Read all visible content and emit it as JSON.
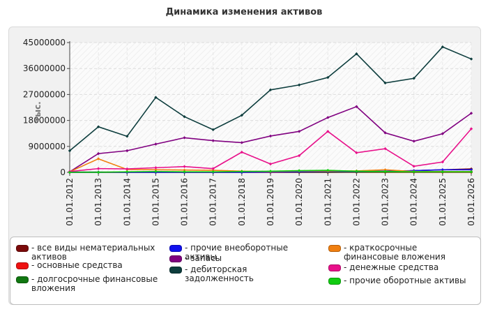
{
  "chart_data": {
    "type": "line",
    "title": "Динамика изменения активов",
    "ylabel": "тыс.",
    "ylim": [
      0,
      45000000
    ],
    "yticks": [
      "0",
      "9000000",
      "18000000",
      "27000000",
      "36000000",
      "45000000"
    ],
    "yticks_values": [
      0,
      9000000,
      18000000,
      27000000,
      36000000,
      45000000
    ],
    "grid": true,
    "legend_position": "bottom",
    "categories": [
      "01.01.2012",
      "01.01.2013",
      "01.01.2014",
      "01.01.2015",
      "01.01.2016",
      "01.01.2017",
      "01.01.2018",
      "01.01.2019",
      "01.01.2020",
      "01.01.2021",
      "01.01.2022",
      "01.01.2023",
      "01.01.2024",
      "01.01.2025",
      "01.01.2026"
    ],
    "series": [
      {
        "name": "все виды нематериальных активов",
        "color": "#7b0a0a",
        "values": [
          0,
          0,
          0,
          0,
          0,
          0,
          0,
          0,
          0,
          0,
          100000,
          200000,
          600000,
          900000,
          1200000
        ]
      },
      {
        "name": "основные средства",
        "color": "#ee1111",
        "values": [
          0,
          0,
          0,
          0,
          0,
          0,
          0,
          0,
          0,
          0,
          0,
          0,
          0,
          0,
          0
        ]
      },
      {
        "name": "долгосрочные финансовые вложения",
        "color": "#117711",
        "values": [
          100000,
          100000,
          100000,
          100000,
          100000,
          100000,
          100000,
          100000,
          100000,
          100000,
          100000,
          100000,
          100000,
          100000,
          100000
        ]
      },
      {
        "name": "прочие внеоборотные активы",
        "color": "#1111ee",
        "values": [
          0,
          0,
          0,
          0,
          0,
          0,
          0,
          100000,
          200000,
          300000,
          300000,
          400000,
          600000,
          900000,
          900000
        ]
      },
      {
        "name": "запасы",
        "color": "#800080",
        "values": [
          200000,
          6500000,
          7500000,
          9800000,
          12000000,
          11000000,
          10300000,
          12600000,
          14200000,
          19000000,
          22800000,
          13700000,
          10800000,
          13400000,
          20500000
        ]
      },
      {
        "name": "дебиторская задолженность",
        "color": "#0d3d3d",
        "values": [
          7500000,
          15800000,
          12500000,
          26000000,
          19300000,
          14800000,
          19800000,
          28600000,
          30300000,
          32900000,
          41100000,
          31000000,
          32600000,
          43500000,
          39300000
        ]
      },
      {
        "name": "краткосрочные финансовые вложения",
        "color": "#f07f10",
        "values": [
          200000,
          4700000,
          1000000,
          900000,
          800000,
          700000,
          400000,
          300000,
          500000,
          500000,
          500000,
          900000,
          300000,
          300000,
          300000
        ]
      },
      {
        "name": "денежные средства",
        "color": "#e8108a",
        "values": [
          300000,
          1300000,
          1200000,
          1600000,
          2000000,
          1300000,
          7000000,
          2900000,
          5800000,
          14200000,
          6800000,
          8200000,
          2100000,
          3600000,
          15100000
        ]
      },
      {
        "name": "прочие оборотные активы",
        "color": "#11cc11",
        "values": [
          0,
          0,
          200000,
          300000,
          200000,
          200000,
          300000,
          400000,
          600000,
          700000,
          400000,
          300000,
          200000,
          200000,
          200000
        ]
      }
    ]
  }
}
